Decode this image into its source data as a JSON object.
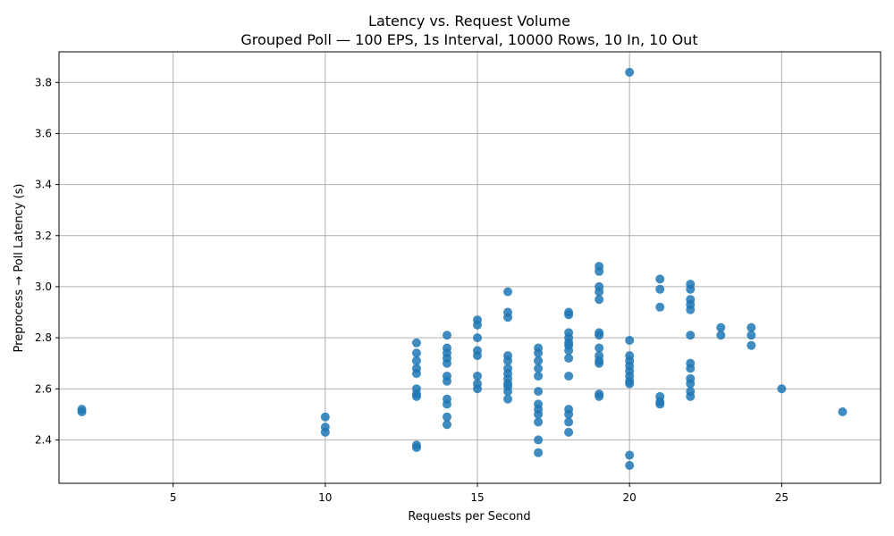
{
  "chart_data": {
    "type": "scatter",
    "title": "Latency vs. Request Volume",
    "subtitle": "Grouped Poll — 100 EPS, 1s Interval, 10000 Rows, 10 In, 10 Out",
    "xlabel": "Requests per Second",
    "ylabel": "Preprocess → Poll Latency (s)",
    "xlim": [
      1.25,
      28.25
    ],
    "ylim": [
      2.23,
      3.92
    ],
    "xticks": [
      5,
      10,
      15,
      20,
      25
    ],
    "yticks": [
      2.4,
      2.6,
      2.8,
      3.0,
      3.2,
      3.4,
      3.6,
      3.8
    ],
    "xtick_labels": [
      "5",
      "10",
      "15",
      "20",
      "25"
    ],
    "ytick_labels": [
      "2.4",
      "2.6",
      "2.8",
      "3.0",
      "3.2",
      "3.4",
      "3.6",
      "3.8"
    ],
    "grid": true,
    "color": "#1f77b4",
    "points": [
      [
        2,
        2.52
      ],
      [
        2,
        2.51
      ],
      [
        10,
        2.49
      ],
      [
        10,
        2.45
      ],
      [
        10,
        2.43
      ],
      [
        13,
        2.78
      ],
      [
        13,
        2.74
      ],
      [
        13,
        2.71
      ],
      [
        13,
        2.68
      ],
      [
        13,
        2.66
      ],
      [
        13,
        2.6
      ],
      [
        13,
        2.58
      ],
      [
        13,
        2.57
      ],
      [
        13,
        2.38
      ],
      [
        13,
        2.37
      ],
      [
        14,
        2.81
      ],
      [
        14,
        2.76
      ],
      [
        14,
        2.74
      ],
      [
        14,
        2.72
      ],
      [
        14,
        2.7
      ],
      [
        14,
        2.65
      ],
      [
        14,
        2.63
      ],
      [
        14,
        2.56
      ],
      [
        14,
        2.54
      ],
      [
        14,
        2.49
      ],
      [
        14,
        2.46
      ],
      [
        15,
        2.87
      ],
      [
        15,
        2.85
      ],
      [
        15,
        2.8
      ],
      [
        15,
        2.75
      ],
      [
        15,
        2.73
      ],
      [
        15,
        2.65
      ],
      [
        15,
        2.62
      ],
      [
        15,
        2.6
      ],
      [
        16,
        2.98
      ],
      [
        16,
        2.9
      ],
      [
        16,
        2.88
      ],
      [
        16,
        2.73
      ],
      [
        16,
        2.71
      ],
      [
        16,
        2.68
      ],
      [
        16,
        2.66
      ],
      [
        16,
        2.64
      ],
      [
        16,
        2.62
      ],
      [
        16,
        2.61
      ],
      [
        16,
        2.59
      ],
      [
        16,
        2.56
      ],
      [
        17,
        2.76
      ],
      [
        17,
        2.74
      ],
      [
        17,
        2.71
      ],
      [
        17,
        2.68
      ],
      [
        17,
        2.65
      ],
      [
        17,
        2.59
      ],
      [
        17,
        2.54
      ],
      [
        17,
        2.52
      ],
      [
        17,
        2.5
      ],
      [
        17,
        2.47
      ],
      [
        17,
        2.4
      ],
      [
        17,
        2.35
      ],
      [
        18,
        2.9
      ],
      [
        18,
        2.89
      ],
      [
        18,
        2.82
      ],
      [
        18,
        2.8
      ],
      [
        18,
        2.78
      ],
      [
        18,
        2.77
      ],
      [
        18,
        2.75
      ],
      [
        18,
        2.72
      ],
      [
        18,
        2.65
      ],
      [
        18,
        2.52
      ],
      [
        18,
        2.5
      ],
      [
        18,
        2.47
      ],
      [
        18,
        2.43
      ],
      [
        19,
        3.08
      ],
      [
        19,
        3.06
      ],
      [
        19,
        3.0
      ],
      [
        19,
        2.98
      ],
      [
        19,
        2.95
      ],
      [
        19,
        2.82
      ],
      [
        19,
        2.81
      ],
      [
        19,
        2.76
      ],
      [
        19,
        2.73
      ],
      [
        19,
        2.71
      ],
      [
        19,
        2.7
      ],
      [
        19,
        2.58
      ],
      [
        19,
        2.57
      ],
      [
        20,
        3.84
      ],
      [
        20,
        2.79
      ],
      [
        20,
        2.73
      ],
      [
        20,
        2.71
      ],
      [
        20,
        2.69
      ],
      [
        20,
        2.67
      ],
      [
        20,
        2.65
      ],
      [
        20,
        2.63
      ],
      [
        20,
        2.62
      ],
      [
        20,
        2.34
      ],
      [
        20,
        2.3
      ],
      [
        21,
        3.03
      ],
      [
        21,
        2.99
      ],
      [
        21,
        2.92
      ],
      [
        21,
        2.57
      ],
      [
        21,
        2.55
      ],
      [
        21,
        2.54
      ],
      [
        22,
        3.01
      ],
      [
        22,
        2.99
      ],
      [
        22,
        2.95
      ],
      [
        22,
        2.93
      ],
      [
        22,
        2.91
      ],
      [
        22,
        2.81
      ],
      [
        22,
        2.7
      ],
      [
        22,
        2.68
      ],
      [
        22,
        2.64
      ],
      [
        22,
        2.62
      ],
      [
        22,
        2.59
      ],
      [
        22,
        2.57
      ],
      [
        23,
        2.84
      ],
      [
        23,
        2.81
      ],
      [
        24,
        2.84
      ],
      [
        24,
        2.81
      ],
      [
        24,
        2.77
      ],
      [
        25,
        2.6
      ],
      [
        27,
        2.51
      ]
    ]
  }
}
